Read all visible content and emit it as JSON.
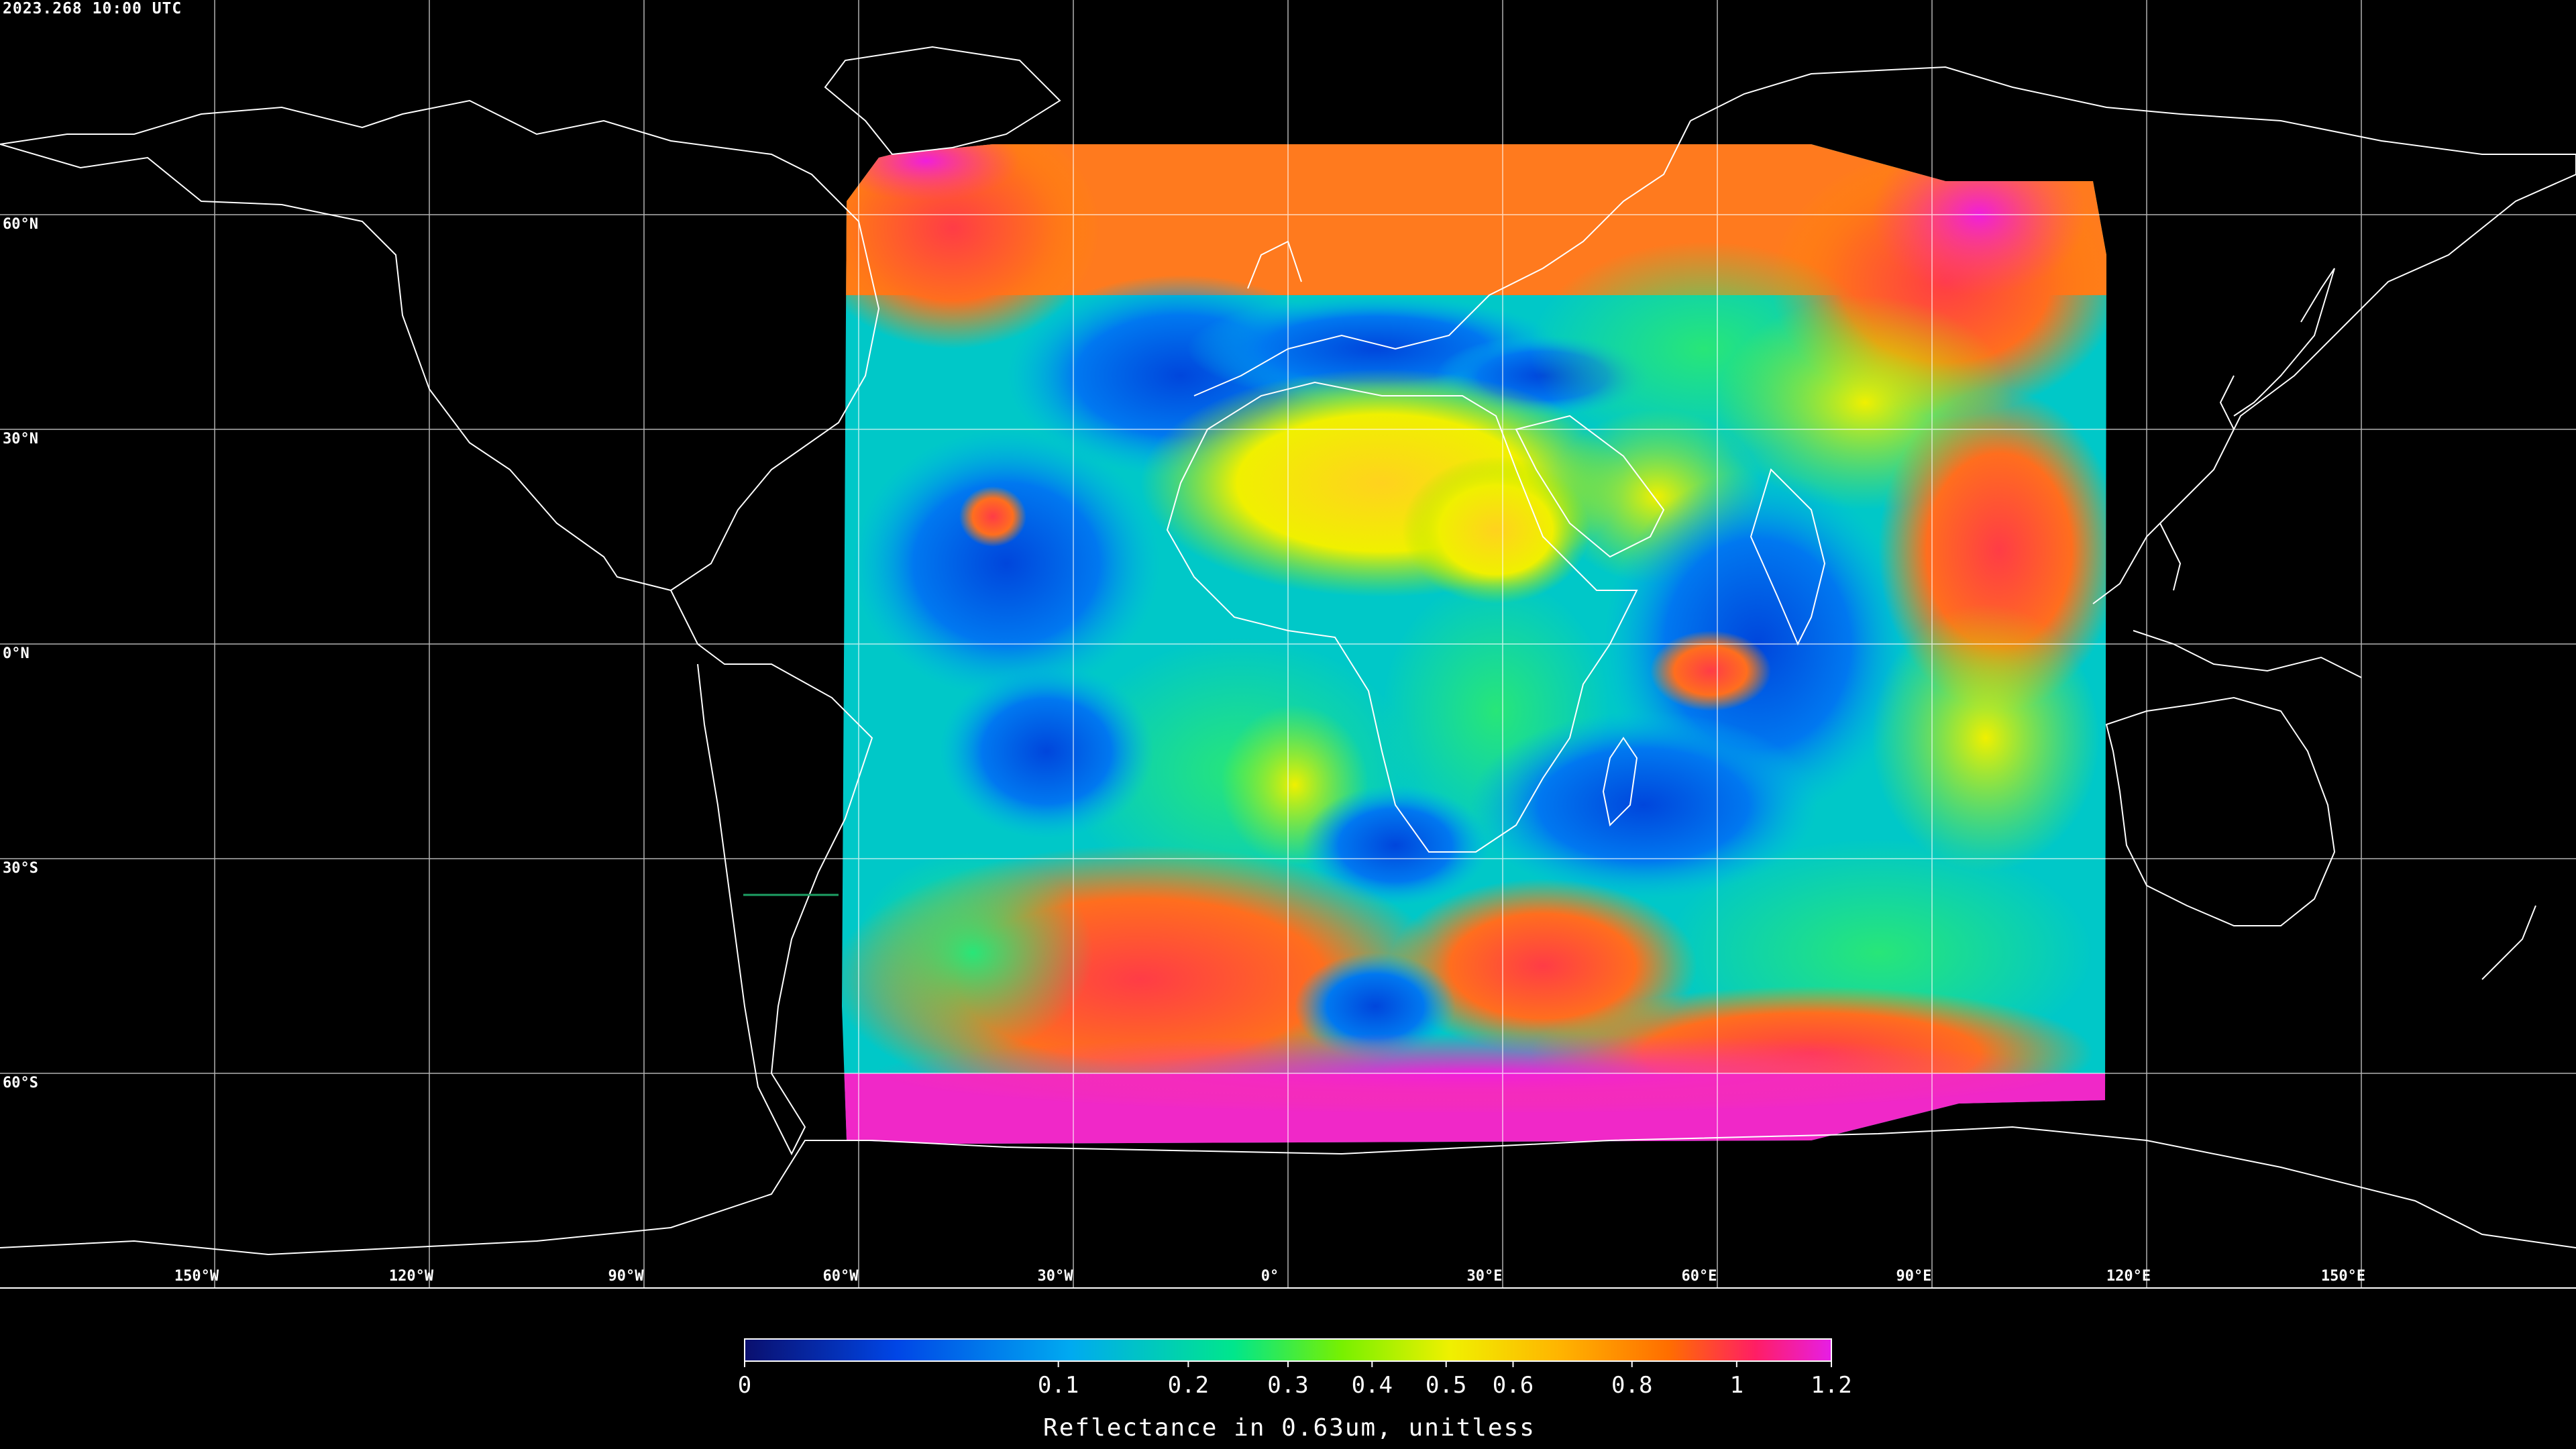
{
  "timestamp": "2023.268 10:00 UTC",
  "latitude_labels": [
    "60°N",
    "30°N",
    "0°N",
    "30°S",
    "60°S"
  ],
  "longitude_labels": [
    "150°W",
    "120°W",
    "90°W",
    "60°W",
    "30°W",
    "0°",
    "30°E",
    "60°E",
    "90°E",
    "120°E",
    "150°E"
  ],
  "colorbar": {
    "title": "Reflectance in 0.63um, unitless",
    "ticks": [
      "0",
      "0.1",
      "0.2",
      "0.3",
      "0.4",
      "0.5",
      "0.6",
      "0.8",
      "1",
      "1.2"
    ],
    "range": [
      0,
      1.2
    ],
    "colors": [
      "#0a0f6e",
      "#0046e6",
      "#00aaf0",
      "#00e68c",
      "#78f000",
      "#f0f000",
      "#ffb400",
      "#ff6e00",
      "#ff1e64",
      "#e61ee6"
    ]
  },
  "background_color": "#000000",
  "grid_color": "#ffffff"
}
